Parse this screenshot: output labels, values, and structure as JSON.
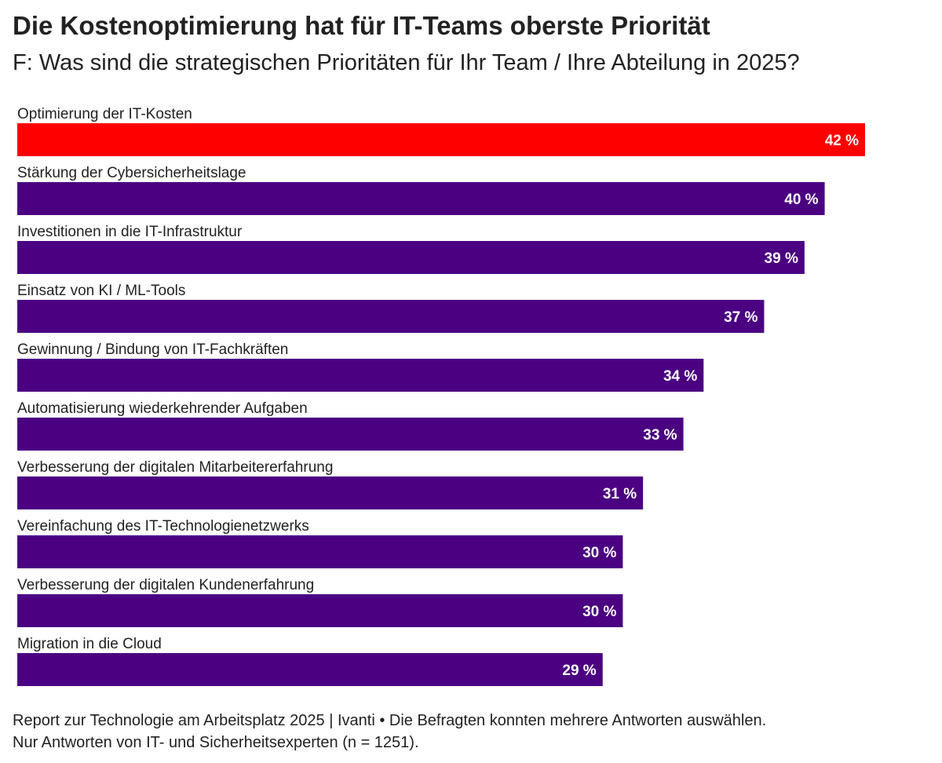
{
  "title": "Die Kostenoptimierung hat für IT-Teams oberste Priorität",
  "subtitle": "F: Was sind die strategischen Prioritäten für Ihr Team / Ihre Abteilung in 2025?",
  "footer": {
    "line1": "Report zur Technologie am Arbeitsplatz 2025 | Ivanti • Die Befragten konnten mehrere Antworten auswählen.",
    "line2": "Nur Antworten von IT- und Sicherheitsexperten (n = 1251)."
  },
  "colors": {
    "highlight": "#ff0000",
    "bar": "#4b0082",
    "label_text": "#ffffff"
  },
  "chart_data": {
    "type": "bar",
    "orientation": "horizontal",
    "categories": [
      "Optimierung der IT-Kosten",
      "Stärkung der Cybersicherheitslage",
      "Investitionen in die IT-Infrastruktur",
      "Einsatz von KI / ML-Tools",
      "Gewinnung / Bindung von IT-Fachkräften",
      "Automatisierung wiederkehrender Aufgaben",
      "Verbesserung der digitalen Mitarbeitererfahrung",
      "Vereinfachung des IT-Technologienetzwerks",
      "Verbesserung der digitalen Kundenerfahrung",
      "Migration in die Cloud"
    ],
    "values": [
      42,
      40,
      39,
      37,
      34,
      33,
      31,
      30,
      30,
      29
    ],
    "value_labels": [
      "42 %",
      "40 %",
      "39 %",
      "37 %",
      "34 %",
      "33 %",
      "31 %",
      "30 %",
      "30 %",
      "29 %"
    ],
    "highlight_index": 0,
    "grid": false,
    "legend": "none"
  }
}
